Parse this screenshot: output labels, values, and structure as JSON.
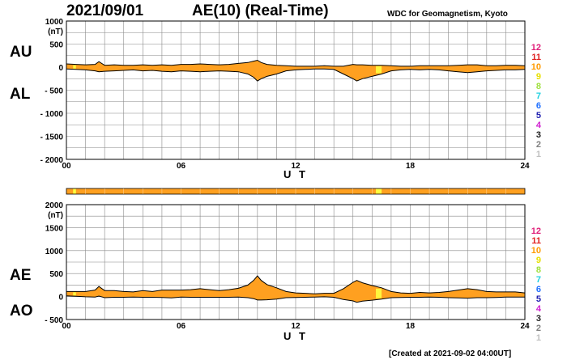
{
  "header": {
    "date": "2021/09/01",
    "title": "AE(10) (Real-Time)",
    "org": "WDC for Geomagnetism, Kyoto"
  },
  "footer": {
    "created": "[Created at 2021-09-02 04:00UT]"
  },
  "colors": {
    "fill": "#ffa020",
    "line": "#000000",
    "grid": "#888888",
    "highlight": "#ffff40"
  },
  "chart_data": [
    {
      "type": "area",
      "title": "AU / AL",
      "series_labels": {
        "upper": "AU",
        "lower": "AL"
      },
      "unit": "(nT)",
      "xlabel": "U T",
      "xlim": [
        0,
        24
      ],
      "ylim": [
        -2000,
        1000
      ],
      "x_ticks": [
        "00",
        "06",
        "12",
        "18",
        "24"
      ],
      "y_ticks": [
        "1000",
        "500",
        "0",
        "- 500",
        "- 1000",
        "- 1500",
        "- 2000"
      ],
      "y_tick_values": [
        1000,
        500,
        0,
        -500,
        -1000,
        -1500,
        -2000
      ],
      "grid": true,
      "x": [
        0,
        0.5,
        1,
        1.5,
        1.7,
        2,
        2.5,
        3,
        3.5,
        4,
        4.5,
        5,
        5.5,
        6,
        6.5,
        7,
        7.5,
        8,
        8.5,
        9,
        9.5,
        9.8,
        10,
        10.2,
        10.5,
        11,
        11.5,
        12,
        12.5,
        13,
        13.5,
        14,
        14.5,
        15,
        15.2,
        15.5,
        16,
        16.5,
        17,
        17.5,
        18,
        18.5,
        19,
        19.5,
        20,
        20.5,
        21,
        21.5,
        22,
        22.5,
        23,
        23.5,
        24
      ],
      "upper": [
        70,
        60,
        50,
        60,
        120,
        40,
        50,
        40,
        40,
        50,
        40,
        50,
        40,
        60,
        60,
        70,
        60,
        50,
        60,
        80,
        100,
        130,
        150,
        100,
        60,
        40,
        30,
        20,
        20,
        20,
        30,
        20,
        20,
        60,
        50,
        50,
        40,
        40,
        30,
        20,
        20,
        30,
        30,
        30,
        30,
        40,
        50,
        50,
        30,
        30,
        40,
        40,
        30
      ],
      "lower": [
        -40,
        -50,
        -60,
        -80,
        -100,
        -90,
        -80,
        -70,
        -60,
        -80,
        -70,
        -90,
        -100,
        -80,
        -90,
        -100,
        -90,
        -80,
        -90,
        -100,
        -150,
        -220,
        -300,
        -250,
        -200,
        -150,
        -80,
        -60,
        -50,
        -40,
        -40,
        -50,
        -150,
        -250,
        -300,
        -250,
        -200,
        -150,
        -80,
        -60,
        -50,
        -60,
        -50,
        -60,
        -80,
        -100,
        -120,
        -100,
        -80,
        -70,
        -60,
        -60,
        -50
      ]
    },
    {
      "type": "area",
      "title": "AE / AO",
      "series_labels": {
        "upper": "AE",
        "lower": "AO"
      },
      "unit": "(nT)",
      "xlabel": "U T",
      "xlim": [
        0,
        24
      ],
      "ylim": [
        -500,
        2000
      ],
      "x_ticks": [
        "00",
        "06",
        "12",
        "18",
        "24"
      ],
      "y_ticks": [
        "2000",
        "1500",
        "1000",
        "500",
        "0",
        "- 500"
      ],
      "y_tick_values": [
        2000,
        1500,
        1000,
        500,
        0,
        -500
      ],
      "grid": true,
      "x": [
        0,
        0.5,
        1,
        1.5,
        1.7,
        2,
        2.5,
        3,
        3.5,
        4,
        4.5,
        5,
        5.5,
        6,
        6.5,
        7,
        7.5,
        8,
        8.5,
        9,
        9.5,
        9.8,
        10,
        10.2,
        10.5,
        11,
        11.5,
        12,
        12.5,
        13,
        13.5,
        14,
        14.5,
        15,
        15.2,
        15.5,
        16,
        16.5,
        17,
        17.5,
        18,
        18.5,
        19,
        19.5,
        20,
        20.5,
        21,
        21.5,
        22,
        22.5,
        23,
        23.5,
        24
      ],
      "upper": [
        110,
        110,
        110,
        140,
        220,
        130,
        130,
        110,
        100,
        130,
        110,
        140,
        140,
        140,
        150,
        170,
        150,
        130,
        150,
        180,
        250,
        350,
        450,
        350,
        260,
        190,
        110,
        80,
        70,
        60,
        70,
        70,
        170,
        310,
        350,
        300,
        240,
        190,
        110,
        80,
        70,
        90,
        80,
        90,
        110,
        140,
        170,
        150,
        110,
        100,
        100,
        100,
        80
      ],
      "lower": [
        15,
        5,
        -5,
        -10,
        10,
        -25,
        -15,
        -15,
        -10,
        -15,
        -15,
        -20,
        -30,
        -10,
        -15,
        -15,
        -15,
        -15,
        -15,
        -10,
        -25,
        -45,
        -75,
        -75,
        -70,
        -55,
        -25,
        -20,
        -15,
        -10,
        -5,
        -15,
        -65,
        -95,
        -125,
        -100,
        -80,
        -55,
        -25,
        -20,
        -15,
        -15,
        -10,
        -15,
        -25,
        -30,
        -35,
        -25,
        -25,
        -20,
        -10,
        -10,
        -10
      ]
    }
  ],
  "availability_bar": {
    "highlight_hours": [
      [
        0.35,
        0.5
      ],
      [
        16.2,
        16.5
      ]
    ]
  },
  "legend": {
    "items": [
      {
        "label": "12",
        "color": "#e0207a"
      },
      {
        "label": "11",
        "color": "#e02020"
      },
      {
        "label": "10",
        "color": "#ff9a00"
      },
      {
        "label": "9",
        "color": "#e8e000"
      },
      {
        "label": "8",
        "color": "#a0e040"
      },
      {
        "label": "7",
        "color": "#20d0e0"
      },
      {
        "label": "6",
        "color": "#2070ff"
      },
      {
        "label": "5",
        "color": "#2020b0"
      },
      {
        "label": "4",
        "color": "#d020d0"
      },
      {
        "label": "3",
        "color": "#202020"
      },
      {
        "label": "2",
        "color": "#808080"
      },
      {
        "label": "1",
        "color": "#c0c0c0"
      }
    ]
  }
}
